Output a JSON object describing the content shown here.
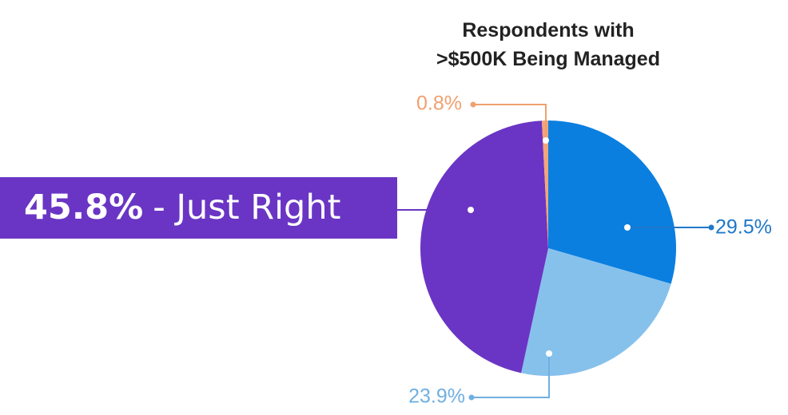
{
  "chart_data": {
    "type": "pie",
    "title_lines": [
      "Respondents with",
      ">$500K Being Managed"
    ],
    "values": [
      29.5,
      23.9,
      45.8,
      0.8
    ],
    "value_labels": [
      "29.5%",
      "23.9%",
      "45.8%",
      "0.8%"
    ],
    "colors": [
      "#0a7fe0",
      "#86c1ec",
      "#6a35c4",
      "#f3a57c"
    ],
    "annotation": "- Just Right"
  }
}
